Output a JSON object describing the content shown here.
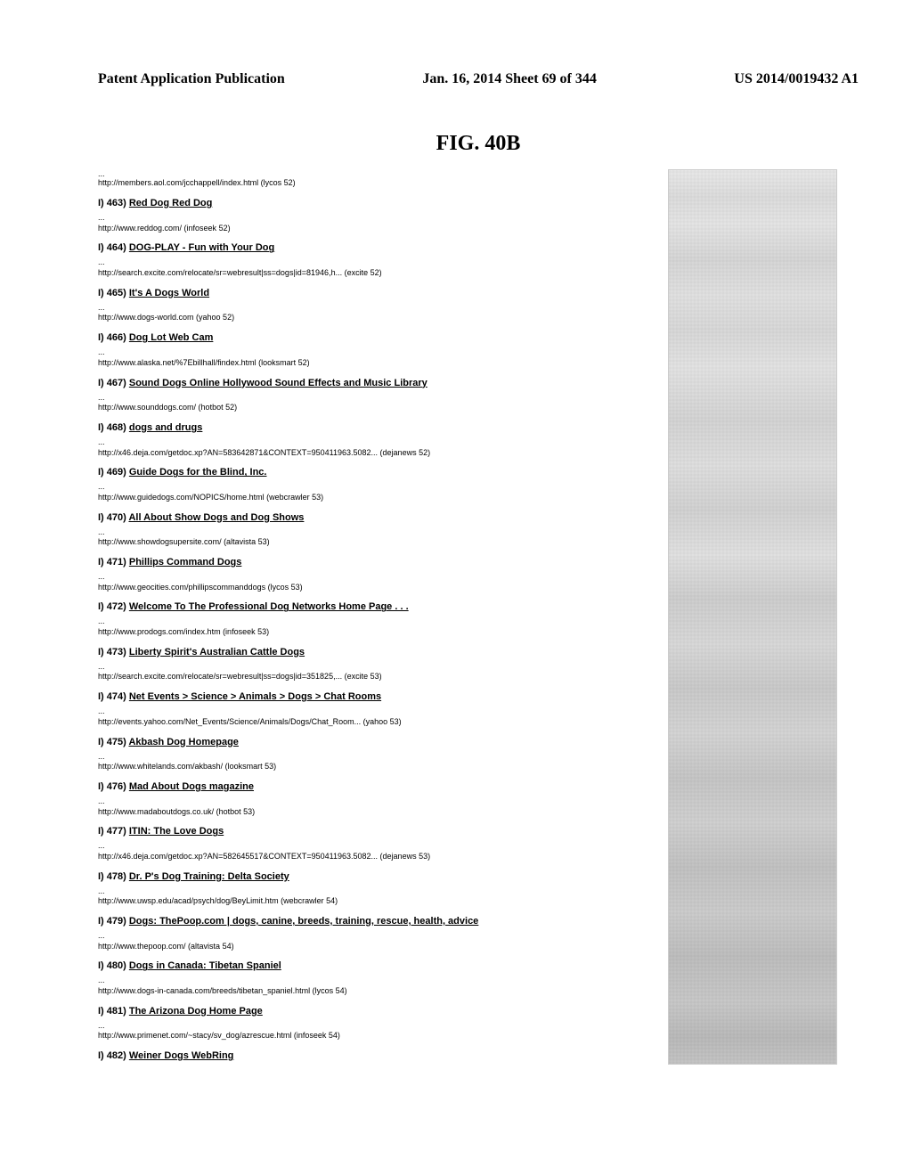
{
  "header": {
    "left": "Patent Application Publication",
    "center": "Jan. 16, 2014  Sheet 69 of 344",
    "right": "US 2014/0019432 A1"
  },
  "figure_title": "FIG. 40B",
  "top_entry": {
    "url": "http://members.aol.com/jcchappell/index.html   (lycos  52)"
  },
  "results": [
    {
      "prefix": "I) 463) ",
      "title": "Red Dog Red Dog",
      "url": "http://www.reddog.com/   (infoseek  52)"
    },
    {
      "prefix": "I) 464) ",
      "title": "DOG-PLAY - Fun with Your Dog",
      "url": "http://search.excite.com/relocate/sr=webresult|ss=dogs|id=81946,h...    (excite  52)"
    },
    {
      "prefix": "I) 465) ",
      "title": "It's A Dogs World",
      "url": "http://www.dogs-world.com   (yahoo  52)"
    },
    {
      "prefix": "I) 466) ",
      "title": "Dog Lot Web Cam",
      "url": "http://www.alaska.net/%7Ebillhall/findex.html   (looksmart  52)"
    },
    {
      "prefix": "I) 467) ",
      "title": "Sound Dogs Online Hollywood Sound Effects and Music Library",
      "url": "http://www.sounddogs.com/   (hotbot  52)"
    },
    {
      "prefix": "I) 468) ",
      "title": "dogs and drugs",
      "url": "http://x46.deja.com/getdoc.xp?AN=583642871&CONTEXT=950411963.5082...   (dejanews  52)"
    },
    {
      "prefix": "I) 469) ",
      "title": "Guide Dogs for the Blind, Inc.",
      "url": "http://www.guidedogs.com/NOPICS/home.html   (webcrawler  53)"
    },
    {
      "prefix": "I) 470) ",
      "title": "All About Show Dogs and Dog Shows",
      "url": "http://www.showdogsupersite.com/   (altavista  53)"
    },
    {
      "prefix": "I) 471) ",
      "title": "Phillips Command Dogs",
      "url": "http://www.geocities.com/phillipscommanddogs   (lycos  53)"
    },
    {
      "prefix": "I) 472) ",
      "title": "Welcome To The Professional Dog Networks Home Page . . .",
      "url": "http://www.prodogs.com/index.htm   (infoseek  53)"
    },
    {
      "prefix": "I) 473) ",
      "title": "Liberty Spirit's Australian Cattle Dogs",
      "url": "http://search.excite.com/relocate/sr=webresult|ss=dogs|id=351825,...   (excite  53)"
    },
    {
      "prefix": "I) 474) ",
      "title": "Net Events > Science > Animals > Dogs > Chat Rooms",
      "url": "http://events.yahoo.com/Net_Events/Science/Animals/Dogs/Chat_Room...   (yahoo  53)"
    },
    {
      "prefix": "I) 475) ",
      "title": "Akbash Dog Homepage",
      "url": "http://www.whitelands.com/akbash/   (looksmart  53)"
    },
    {
      "prefix": "I) 476) ",
      "title": "Mad About Dogs magazine",
      "url": "http://www.madaboutdogs.co.uk/   (hotbot  53)"
    },
    {
      "prefix": "I) 477) ",
      "title": "ITIN: The Love Dogs",
      "url": "http://x46.deja.com/getdoc.xp?AN=582645517&CONTEXT=950411963.5082...   (dejanews  53)"
    },
    {
      "prefix": "I) 478) ",
      "title": "Dr. P's Dog Training: Delta Society",
      "url": "http://www.uwsp.edu/acad/psych/dog/BeyLimit.htm   (webcrawler  54)"
    },
    {
      "prefix": "I) 479) ",
      "title": "Dogs: ThePoop.com | dogs, canine, breeds, training, rescue, health, advice",
      "url": "http://www.thepoop.com/   (altavista  54)"
    },
    {
      "prefix": "I) 480) ",
      "title": "Dogs in Canada: Tibetan Spaniel",
      "url": "http://www.dogs-in-canada.com/breeds/tibetan_spaniel.html   (lycos  54)"
    },
    {
      "prefix": "I) 481) ",
      "title": "The Arizona Dog Home Page",
      "url": "http://www.primenet.com/~stacy/sv_dog/azrescue.html   (infoseek  54)"
    },
    {
      "prefix": "I) 482) ",
      "title": "Weiner Dogs WebRing",
      "url": ""
    }
  ]
}
